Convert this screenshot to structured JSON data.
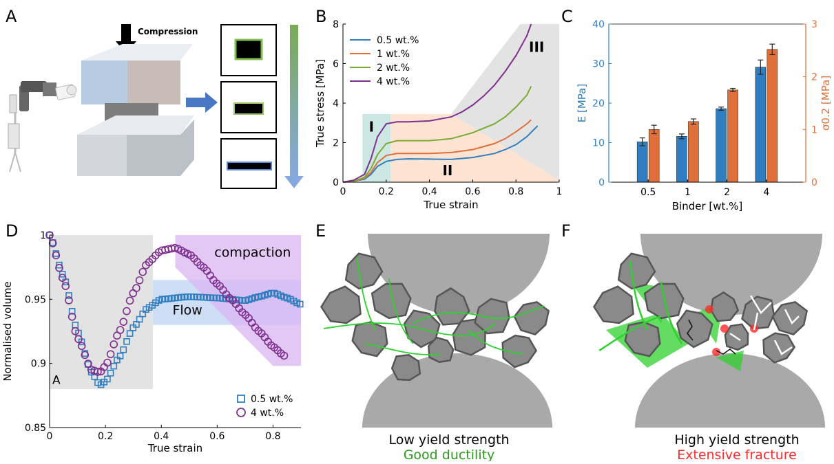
{
  "panel_labels": {
    "A": "A",
    "B": "B",
    "C": "C",
    "D": "D",
    "E": "E",
    "F": "F"
  },
  "panelA": {
    "compression_label": "Compression"
  },
  "colors": {
    "blue": "#2f7ec1",
    "orange": "#e0703a",
    "green": "#7aab2f",
    "purple": "#7e2f8e",
    "gray_region": "#e3e3e3",
    "teal_region": "#cde8e4",
    "peach_region": "#fde4d2",
    "flow_region": "#bcd3f2",
    "compaction_region": "#d9b6f2",
    "ductile_green": "#2ed12e",
    "fracture_red": "#ff2a2a"
  },
  "chart_data": [
    {
      "id": "B",
      "type": "line",
      "xlabel": "True strain",
      "ylabel": "True stress [MPa]",
      "xlim": [
        0,
        1
      ],
      "ylim": [
        0,
        8
      ],
      "xticks": [
        0,
        0.2,
        0.4,
        0.6,
        0.8,
        1
      ],
      "xtick_labels": [
        "0",
        "0.2",
        "0.4",
        "0.6",
        "0.8",
        "1"
      ],
      "yticks": [
        0,
        2,
        4,
        6,
        8
      ],
      "legend_position": "top-left",
      "region_labels": [
        "I",
        "II",
        "III"
      ],
      "series": [
        {
          "name": "0.5 wt.%",
          "color": "#2f7ec1",
          "x": [
            0,
            0.05,
            0.1,
            0.13,
            0.16,
            0.2,
            0.25,
            0.3,
            0.4,
            0.5,
            0.6,
            0.7,
            0.75,
            0.8,
            0.85,
            0.9
          ],
          "y": [
            0,
            0.05,
            0.15,
            0.4,
            0.8,
            1.05,
            1.15,
            1.18,
            1.17,
            1.15,
            1.25,
            1.45,
            1.65,
            1.9,
            2.3,
            2.85
          ]
        },
        {
          "name": "1 wt.%",
          "color": "#e0703a",
          "x": [
            0,
            0.05,
            0.1,
            0.13,
            0.16,
            0.2,
            0.25,
            0.3,
            0.4,
            0.5,
            0.6,
            0.7,
            0.75,
            0.8,
            0.85,
            0.87
          ],
          "y": [
            0,
            0.05,
            0.2,
            0.5,
            1.0,
            1.35,
            1.45,
            1.45,
            1.45,
            1.5,
            1.65,
            1.95,
            2.2,
            2.55,
            2.95,
            3.15
          ]
        },
        {
          "name": "2 wt.%",
          "color": "#7aab2f",
          "x": [
            0,
            0.05,
            0.1,
            0.13,
            0.16,
            0.2,
            0.25,
            0.3,
            0.4,
            0.5,
            0.6,
            0.7,
            0.75,
            0.8,
            0.85,
            0.87
          ],
          "y": [
            0,
            0.05,
            0.25,
            0.7,
            1.4,
            1.95,
            2.1,
            2.1,
            2.1,
            2.2,
            2.5,
            2.95,
            3.3,
            3.8,
            4.4,
            4.85
          ]
        },
        {
          "name": "4 wt.%",
          "color": "#7e2f8e",
          "x": [
            0,
            0.05,
            0.1,
            0.13,
            0.16,
            0.2,
            0.25,
            0.3,
            0.4,
            0.5,
            0.55,
            0.6,
            0.65,
            0.7,
            0.75,
            0.8,
            0.85,
            0.87
          ],
          "y": [
            0,
            0.1,
            0.4,
            1.2,
            2.3,
            2.95,
            3.05,
            3.05,
            3.1,
            3.3,
            3.55,
            3.9,
            4.35,
            4.9,
            5.6,
            6.4,
            7.4,
            8.0
          ]
        }
      ]
    },
    {
      "id": "C",
      "type": "bar",
      "xlabel": "Binder [wt.%]",
      "ylabel_left": "E [MPa]",
      "ylabel_right": "σ0.2 [MPa]",
      "categories": [
        "0.5",
        "1",
        "2",
        "4"
      ],
      "ylim_left": [
        0,
        40
      ],
      "yticks_left": [
        0,
        10,
        20,
        30,
        40
      ],
      "ylim_right": [
        0,
        3
      ],
      "yticks_right": [
        0,
        1,
        2,
        3
      ],
      "series": [
        {
          "name": "E",
          "axis": "left",
          "color": "#2f7ec1",
          "values": [
            10.2,
            11.6,
            18.6,
            29.1
          ],
          "errors": [
            1.0,
            0.6,
            0.4,
            1.8
          ]
        },
        {
          "name": "σ0.2",
          "axis": "right",
          "color": "#e0703a",
          "values": [
            1.0,
            1.15,
            1.75,
            2.52
          ],
          "errors": [
            0.08,
            0.05,
            0.03,
            0.1
          ]
        }
      ]
    },
    {
      "id": "D",
      "type": "scatter",
      "xlabel": "True strain",
      "ylabel": "Normalised volume",
      "xlim": [
        0,
        0.9
      ],
      "ylim": [
        0.85,
        1.0
      ],
      "xticks": [
        0,
        0.2,
        0.4,
        0.6,
        0.8
      ],
      "xtick_labels": [
        "0",
        "0.2",
        "0.4",
        "0.6",
        "0.8"
      ],
      "yticks": [
        0.85,
        0.9,
        0.95,
        1
      ],
      "ytick_labels": [
        "0.85",
        "0.9",
        "0.95",
        "1"
      ],
      "legend_position": "bottom-right",
      "region_labels": {
        "A": "A",
        "flow": "Flow",
        "compaction": "compaction"
      },
      "series": [
        {
          "name": "0.5 wt.%",
          "marker": "square",
          "color": "#2f7ec1",
          "x": [
            0.0,
            0.05,
            0.1,
            0.15,
            0.18,
            0.2,
            0.25,
            0.3,
            0.35,
            0.4,
            0.5,
            0.6,
            0.7,
            0.75,
            0.8,
            0.85,
            0.9
          ],
          "y": [
            1.0,
            0.968,
            0.925,
            0.893,
            0.883,
            0.886,
            0.905,
            0.928,
            0.943,
            0.95,
            0.952,
            0.951,
            0.949,
            0.952,
            0.955,
            0.951,
            0.946
          ]
        },
        {
          "name": "4 wt.%",
          "marker": "circle",
          "color": "#7e2f8e",
          "x": [
            0.0,
            0.05,
            0.1,
            0.15,
            0.18,
            0.2,
            0.25,
            0.3,
            0.35,
            0.4,
            0.45,
            0.5,
            0.55,
            0.6,
            0.65,
            0.7,
            0.75,
            0.8,
            0.84
          ],
          "y": [
            1.0,
            0.965,
            0.92,
            0.895,
            0.893,
            0.898,
            0.925,
            0.955,
            0.978,
            0.988,
            0.99,
            0.985,
            0.975,
            0.962,
            0.95,
            0.938,
            0.925,
            0.913,
            0.906
          ]
        }
      ]
    }
  ],
  "panelE": {
    "caption1": "Low yield strength",
    "caption2": "Good ductility"
  },
  "panelF": {
    "caption1": "High yield strength",
    "caption2": "Extensive fracture"
  }
}
